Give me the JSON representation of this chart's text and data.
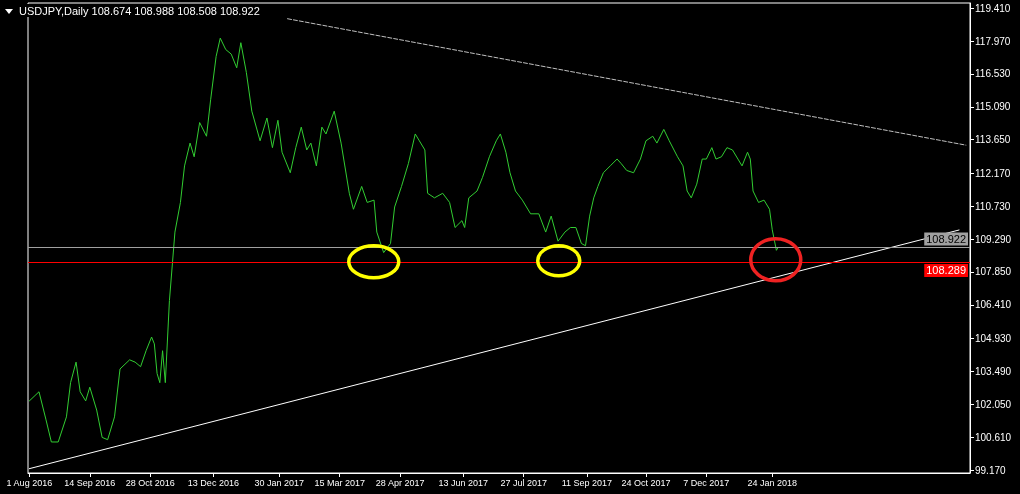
{
  "chart_data": {
    "type": "line",
    "title": "USDJPY,Daily 108.674 108.988 108.508 108.922",
    "xlim": [
      "2016-07-31",
      "2018-06-17"
    ],
    "xticks": [
      {
        "value": "2016-08-01",
        "label": "1 Aug 2016"
      },
      {
        "value": "2016-09-14",
        "label": "14 Sep 2016"
      },
      {
        "value": "2016-10-28",
        "label": "28 Oct 2016"
      },
      {
        "value": "2016-12-13",
        "label": "13 Dec 2016"
      },
      {
        "value": "2017-01-30",
        "label": "30 Jan 2017"
      },
      {
        "value": "2017-03-15",
        "label": "15 Mar 2017"
      },
      {
        "value": "2017-04-28",
        "label": "28 Apr 2017"
      },
      {
        "value": "2017-06-13",
        "label": "13 Jun 2017"
      },
      {
        "value": "2017-07-27",
        "label": "27 Jul 2017"
      },
      {
        "value": "2017-09-11",
        "label": "11 Sep 2017"
      },
      {
        "value": "2017-10-24",
        "label": "24 Oct 2017"
      },
      {
        "value": "2017-12-07",
        "label": "7 Dec 2017"
      },
      {
        "value": "2018-01-24",
        "label": "24 Jan 2018"
      }
    ],
    "ylim": [
      99.04,
      119.64
    ],
    "yticks": [
      {
        "value": 99.17,
        "label": "99.170"
      },
      {
        "value": 100.61,
        "label": "100.610"
      },
      {
        "value": 102.05,
        "label": "102.050"
      },
      {
        "value": 103.49,
        "label": "103.490"
      },
      {
        "value": 104.93,
        "label": "104.930"
      },
      {
        "value": 106.41,
        "label": "106.410"
      },
      {
        "value": 107.85,
        "label": "107.850"
      },
      {
        "value": 109.29,
        "label": "109.290"
      },
      {
        "value": 110.73,
        "label": "110.730"
      },
      {
        "value": 112.17,
        "label": "112.170"
      },
      {
        "value": 113.65,
        "label": "113.650"
      },
      {
        "value": 115.09,
        "label": "115.090"
      },
      {
        "value": 116.53,
        "label": "116.530"
      },
      {
        "value": 117.97,
        "label": "117.970"
      },
      {
        "value": 119.41,
        "label": "119.410"
      }
    ],
    "series": [
      {
        "color": "#32cd32",
        "x": [
          "2016-08-01",
          "2016-08-08",
          "2016-08-13",
          "2016-08-17",
          "2016-08-22",
          "2016-08-28",
          "2016-08-31",
          "2016-09-04",
          "2016-09-07",
          "2016-09-11",
          "2016-09-14",
          "2016-09-19",
          "2016-09-23",
          "2016-09-27",
          "2016-10-02",
          "2016-10-06",
          "2016-10-13",
          "2016-10-17",
          "2016-10-21",
          "2016-10-25",
          "2016-10-29",
          "2016-10-31",
          "2016-11-02",
          "2016-11-04",
          "2016-11-06",
          "2016-11-08",
          "2016-11-11",
          "2016-11-15",
          "2016-11-19",
          "2016-11-22",
          "2016-11-26",
          "2016-11-29",
          "2016-12-03",
          "2016-12-08",
          "2016-12-11",
          "2016-12-15",
          "2016-12-18",
          "2016-12-22",
          "2016-12-26",
          "2016-12-30",
          "2017-01-02",
          "2017-01-06",
          "2017-01-10",
          "2017-01-16",
          "2017-01-21",
          "2017-01-25",
          "2017-01-29",
          "2017-02-01",
          "2017-02-07",
          "2017-02-11",
          "2017-02-15",
          "2017-02-19",
          "2017-02-22",
          "2017-02-26",
          "2017-03-02",
          "2017-03-05",
          "2017-03-11",
          "2017-03-16",
          "2017-03-22",
          "2017-03-25",
          "2017-03-31",
          "2017-04-04",
          "2017-04-09",
          "2017-04-11",
          "2017-04-16",
          "2017-04-21",
          "2017-04-24",
          "2017-04-29",
          "2017-05-04",
          "2017-05-09",
          "2017-05-12",
          "2017-05-16",
          "2017-05-18",
          "2017-05-23",
          "2017-05-29",
          "2017-06-03",
          "2017-06-07",
          "2017-06-12",
          "2017-06-14",
          "2017-06-17",
          "2017-06-23",
          "2017-06-27",
          "2017-07-02",
          "2017-07-07",
          "2017-07-10",
          "2017-07-14",
          "2017-07-17",
          "2017-07-21",
          "2017-07-26",
          "2017-08-01",
          "2017-08-07",
          "2017-08-12",
          "2017-08-16",
          "2017-08-21",
          "2017-08-26",
          "2017-08-30",
          "2017-09-03",
          "2017-09-07",
          "2017-09-10",
          "2017-09-13",
          "2017-09-16",
          "2017-09-19",
          "2017-09-23",
          "2017-09-28",
          "2017-10-03",
          "2017-10-06",
          "2017-10-10",
          "2017-10-15",
          "2017-10-20",
          "2017-10-24",
          "2017-10-29",
          "2017-11-01",
          "2017-11-06",
          "2017-11-10",
          "2017-11-16",
          "2017-11-20",
          "2017-11-23",
          "2017-11-26",
          "2017-11-30",
          "2017-12-04",
          "2017-12-07",
          "2017-12-11",
          "2017-12-14",
          "2017-12-18",
          "2017-12-22",
          "2017-12-26",
          "2017-12-30",
          "2018-01-02",
          "2018-01-06",
          "2018-01-08",
          "2018-01-10",
          "2018-01-14",
          "2018-01-18",
          "2018-01-22",
          "2018-01-24",
          "2018-01-27",
          "2018-01-28"
        ],
        "values": [
          102.2,
          102.6,
          101.4,
          100.4,
          100.4,
          101.5,
          103.0,
          103.9,
          102.6,
          102.2,
          102.8,
          101.8,
          100.6,
          100.5,
          101.5,
          103.6,
          104.0,
          103.9,
          103.7,
          104.4,
          105.0,
          104.7,
          103.4,
          103.0,
          104.4,
          103.0,
          106.6,
          109.6,
          110.9,
          112.5,
          113.5,
          112.9,
          114.4,
          113.8,
          115.4,
          117.3,
          118.1,
          117.6,
          117.4,
          116.8,
          117.9,
          116.6,
          114.9,
          113.6,
          114.6,
          113.3,
          114.5,
          113.1,
          112.2,
          113.3,
          114.2,
          113.2,
          113.5,
          112.5,
          114.2,
          113.9,
          114.9,
          113.5,
          111.3,
          110.6,
          111.6,
          110.9,
          111.0,
          109.6,
          108.7,
          109.1,
          110.7,
          111.6,
          112.6,
          113.9,
          113.6,
          113.2,
          111.3,
          111.1,
          111.3,
          110.9,
          109.8,
          110.1,
          109.8,
          111.1,
          111.4,
          112.0,
          112.9,
          113.6,
          113.9,
          113.1,
          112.2,
          111.4,
          111.0,
          110.4,
          110.4,
          109.6,
          110.3,
          109.2,
          109.6,
          109.8,
          109.8,
          109.1,
          109.0,
          110.3,
          111.1,
          111.6,
          112.2,
          112.5,
          112.8,
          112.6,
          112.3,
          112.2,
          112.8,
          113.6,
          113.8,
          113.5,
          114.1,
          113.6,
          112.9,
          112.5,
          111.4,
          111.1,
          111.7,
          112.8,
          112.8,
          113.3,
          112.8,
          112.9,
          113.3,
          113.2,
          112.8,
          112.5,
          113.1,
          112.8,
          111.4,
          110.9,
          111.0,
          110.6,
          109.7,
          108.8,
          108.9
        ]
      },
      {
        "color": "#ffffff",
        "line_style": "solid",
        "x": [
          "2016-08-01",
          "2018-06-09"
        ],
        "values": [
          99.23,
          109.69
        ]
      },
      {
        "color": "#c0c0c0",
        "line_style": "dashed",
        "x": [
          "2017-02-05",
          "2018-06-14"
        ],
        "values": [
          118.95,
          113.41
        ]
      }
    ],
    "ref_lines": [
      {
        "axis": "y",
        "value": 108.922,
        "label": "108.922",
        "color": "#a0a0a0"
      },
      {
        "axis": "y",
        "value": 108.289,
        "label": "108.289",
        "color": "#ff0000"
      }
    ],
    "grid": false,
    "marker": "none"
  }
}
